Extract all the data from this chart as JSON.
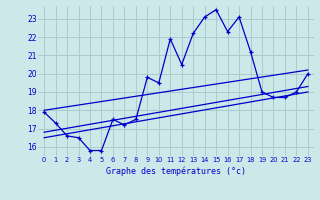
{
  "xlabel": "Graphe des températures (°c)",
  "x_ticks": [
    0,
    1,
    2,
    3,
    4,
    5,
    6,
    7,
    8,
    9,
    10,
    11,
    12,
    13,
    14,
    15,
    16,
    17,
    18,
    19,
    20,
    21,
    22,
    23
  ],
  "x_tick_labels": [
    "0",
    "1",
    "2",
    "3",
    "4",
    "5",
    "6",
    "7",
    "8",
    "9",
    "10",
    "11",
    "12",
    "13",
    "14",
    "15",
    "16",
    "17",
    "18",
    "19",
    "20",
    "21",
    "22",
    "23"
  ],
  "ylim": [
    15.5,
    23.7
  ],
  "xlim": [
    -0.5,
    23.5
  ],
  "y_ticks": [
    16,
    17,
    18,
    19,
    20,
    21,
    22,
    23
  ],
  "background_color": "#cce8e8",
  "grid_color": "#aacccc",
  "line_color": "#0000cc",
  "temp_line": {
    "x": [
      0,
      1,
      2,
      3,
      4,
      5,
      6,
      7,
      8,
      9,
      10,
      11,
      12,
      13,
      14,
      15,
      16,
      17,
      18,
      19,
      20,
      21,
      22,
      23
    ],
    "y": [
      17.9,
      17.3,
      16.6,
      16.5,
      15.8,
      15.8,
      17.5,
      17.2,
      17.5,
      19.8,
      19.5,
      21.9,
      20.5,
      22.2,
      23.1,
      23.5,
      22.3,
      23.1,
      21.2,
      19.0,
      18.7,
      18.7,
      19.0,
      20.0
    ]
  },
  "trend_line1": {
    "x": [
      0,
      23
    ],
    "y": [
      18.0,
      20.2
    ]
  },
  "trend_line2": {
    "x": [
      0,
      23
    ],
    "y": [
      16.8,
      19.3
    ]
  },
  "trend_line3": {
    "x": [
      0,
      23
    ],
    "y": [
      16.5,
      19.0
    ]
  }
}
